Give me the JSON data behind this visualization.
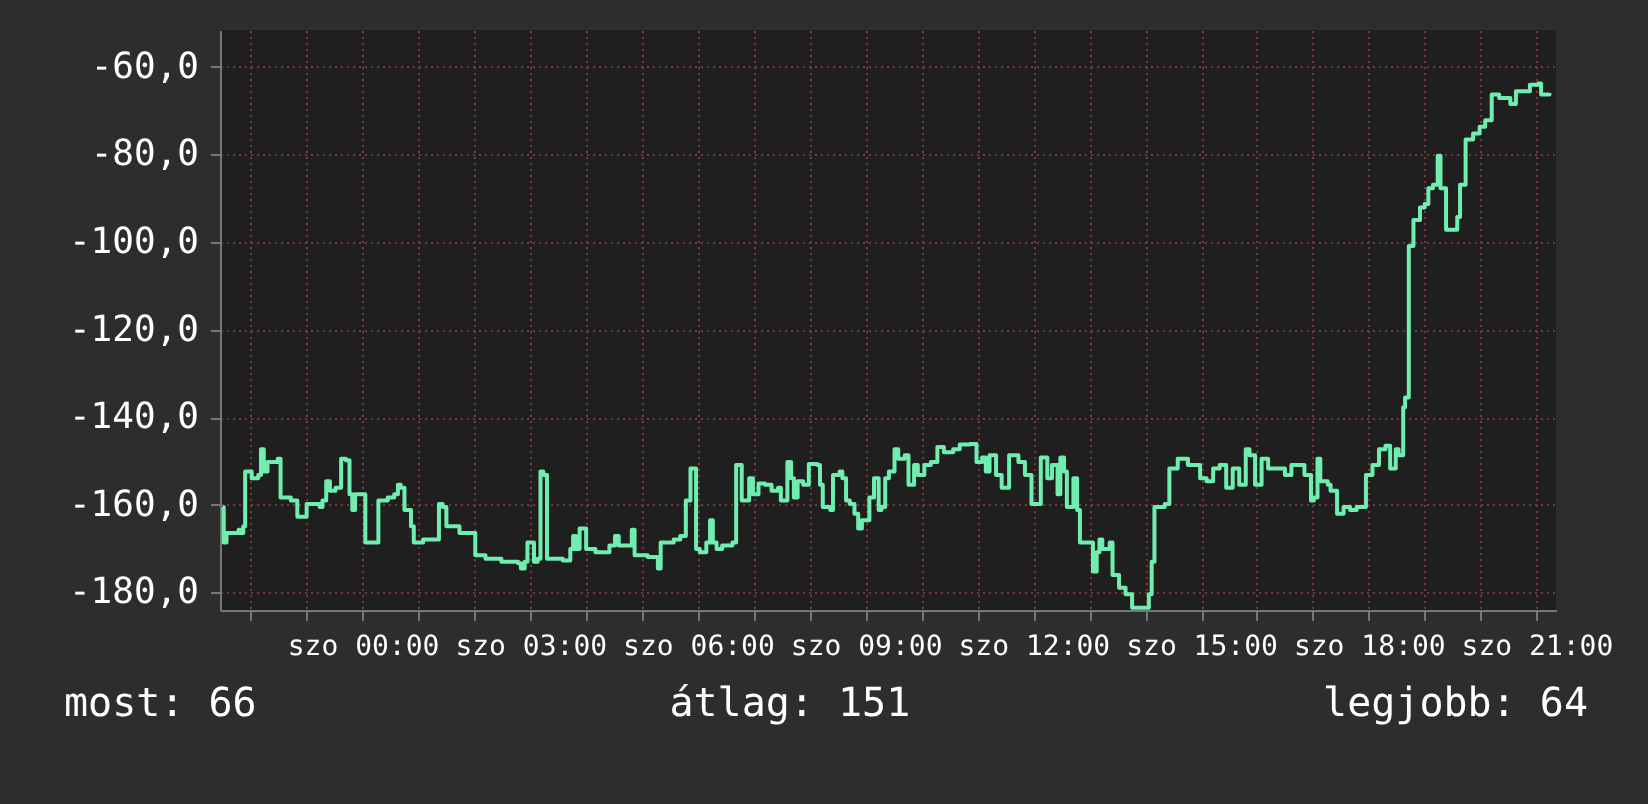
{
  "chart_data": {
    "type": "line",
    "x": [
      "--01-05T21:30",
      "--01-05T21:31",
      "--01-05T21:34",
      "--01-05T21:47",
      "--01-05T21:50",
      "--01-05T21:52",
      "--01-05T21:54",
      "--01-05T22:01",
      "--01-05T22:08",
      "--01-05T22:11",
      "--01-05T22:14",
      "--01-05T22:18",
      "--01-05T22:25",
      "--01-05T22:29",
      "--01-05T22:32",
      "--01-05T22:43",
      "--01-05T22:50",
      "--01-05T23:00",
      "--01-05T23:10",
      "--01-05T23:14",
      "--01-05T23:17",
      "--01-05T23:21",
      "--01-05T23:25",
      "--01-05T23:31",
      "--01-05T23:37",
      "--01-05T23:42",
      "--01-05T23:46",
      "--01-05T23:49",
      "--01-05T23:52",
      "--01-05T23:59",
      "--01-06T00:03",
      "--01-06T00:12",
      "--01-06T00:17",
      "--01-06T00:27",
      "--01-06T00:34",
      "--01-06T00:38",
      "--01-06T00:41",
      "--01-06T00:45",
      "--01-06T00:52",
      "--01-06T00:55",
      "--01-06T01:05",
      "--01-06T01:16",
      "--01-06T01:22",
      "--01-06T01:26",
      "--01-06T01:30",
      "--01-06T01:37",
      "--01-06T01:44",
      "--01-06T01:58",
      "--01-06T02:01",
      "--01-06T02:12",
      "--01-06T02:29",
      "--01-06T02:47",
      "--01-06T02:50",
      "--01-06T02:54",
      "--01-06T02:57",
      "--01-06T03:01",
      "--01-06T03:04",
      "--01-06T03:08",
      "--01-06T03:11",
      "--01-06T03:14",
      "--01-06T03:18",
      "--01-06T03:35",
      "--01-06T03:43",
      "--01-06T03:46",
      "--01-06T03:49",
      "--01-06T03:53",
      "--01-06T03:56",
      "--01-06T04:00",
      "--01-06T04:10",
      "--01-06T04:25",
      "--01-06T04:31",
      "--01-06T04:35",
      "--01-06T04:42",
      "--01-06T04:49",
      "--01-06T04:52",
      "--01-06T05:06",
      "--01-06T05:17",
      "--01-06T05:20",
      "--01-06T05:34",
      "--01-06T05:41",
      "--01-06T05:47",
      "--01-06T05:52",
      "--01-06T05:55",
      "--01-06T05:58",
      "--01-06T06:02",
      "--01-06T06:09",
      "--01-06T06:13",
      "--01-06T06:16",
      "--01-06T06:20",
      "--01-06T06:26",
      "--01-06T06:37",
      "--01-06T06:41",
      "--01-06T06:44",
      "--01-06T06:47",
      "--01-06T06:55",
      "--01-06T06:59",
      "--01-06T07:05",
      "--01-06T07:12",
      "--01-06T07:19",
      "--01-06T07:26",
      "--01-06T07:29",
      "--01-06T07:36",
      "--01-06T07:40",
      "--01-06T07:43",
      "--01-06T07:47",
      "--01-06T07:53",
      "--01-06T07:59",
      "--01-06T08:08",
      "--01-06T08:11",
      "--01-06T08:14",
      "--01-06T08:22",
      "--01-06T08:25",
      "--01-06T08:32",
      "--01-06T08:35",
      "--01-06T08:39",
      "--01-06T08:43",
      "--01-06T08:48",
      "--01-06T08:52",
      "--01-06T08:56",
      "--01-06T09:04",
      "--01-06T09:09",
      "--01-06T09:14",
      "--01-06T09:17",
      "--01-06T09:21",
      "--01-06T09:25",
      "--01-06T09:31",
      "--01-06T09:35",
      "--01-06T09:42",
      "--01-06T09:46",
      "--01-06T09:52",
      "--01-06T09:56",
      "--01-06T10:03",
      "--01-06T10:10",
      "--01-06T10:17",
      "--01-06T10:24",
      "--01-06T10:34",
      "--01-06T10:41",
      "--01-06T10:52",
      "--01-06T10:59",
      "--01-06T11:05",
      "--01-06T11:09",
      "--01-06T11:13",
      "--01-06T11:20",
      "--01-06T11:26",
      "--01-06T11:34",
      "--01-06T11:44",
      "--01-06T11:51",
      "--01-06T11:58",
      "--01-06T12:01",
      "--01-06T12:08",
      "--01-06T12:15",
      "--01-06T12:20",
      "--01-06T12:26",
      "--01-06T12:29",
      "--01-06T12:33",
      "--01-06T12:36",
      "--01-06T12:43",
      "--01-06T12:47",
      "--01-06T12:50",
      "--01-06T12:57",
      "--01-06T13:04",
      "--01-06T13:08",
      "--01-06T13:11",
      "--01-06T13:14",
      "--01-06T13:22",
      "--01-06T13:25",
      "--01-06T13:32",
      "--01-06T13:39",
      "--01-06T13:46",
      "--01-06T14:00",
      "--01-06T14:04",
      "--01-06T14:07",
      "--01-06T14:10",
      "--01-06T14:21",
      "--01-06T14:26",
      "--01-06T14:35",
      "--01-06T14:46",
      "--01-06T14:52",
      "--01-06T14:59",
      "--01-06T15:06",
      "--01-06T15:13",
      "--01-06T15:20",
      "--01-06T15:27",
      "--01-06T15:34",
      "--01-06T15:41",
      "--01-06T15:48",
      "--01-06T15:52",
      "--01-06T15:58",
      "--01-06T16:05",
      "--01-06T16:12",
      "--01-06T16:23",
      "--01-06T16:30",
      "--01-06T16:37",
      "--01-06T16:44",
      "--01-06T16:51",
      "--01-06T16:58",
      "--01-06T17:01",
      "--01-06T17:05",
      "--01-06T17:08",
      "--01-06T17:16",
      "--01-06T17:19",
      "--01-06T17:26",
      "--01-06T17:33",
      "--01-06T17:40",
      "--01-06T17:47",
      "--01-06T17:54",
      "--01-06T17:57",
      "--01-06T18:04",
      "--01-06T18:11",
      "--01-06T18:18",
      "--01-06T18:23",
      "--01-06T18:29",
      "--01-06T18:32",
      "--01-06T18:37",
      "--01-06T18:39",
      "--01-06T18:43",
      "--01-06T18:48",
      "--01-06T18:55",
      "--01-06T19:00",
      "--01-06T19:04",
      "--01-06T19:09",
      "--01-06T19:14",
      "--01-06T19:17",
      "--01-06T19:23",
      "--01-06T19:30",
      "--01-06T19:35",
      "--01-06T19:38",
      "--01-06T19:44",
      "--01-06T19:52",
      "--01-06T19:59",
      "--01-06T20:05",
      "--01-06T20:12",
      "--01-06T20:20",
      "--01-06T20:27",
      "--01-06T20:32",
      "--01-06T20:38",
      "--01-06T20:48",
      "--01-06T20:53",
      "--01-06T21:02",
      "--01-06T21:05",
      "--01-06T21:14"
    ],
    "series": [
      {
        "color": "#70eeb0",
        "values": [
          -160.5,
          -168.6,
          -166.4,
          -165.7,
          -166.4,
          -164.9,
          -152.4,
          -153.9,
          -153.2,
          -147.3,
          -152.4,
          -150.2,
          -150.2,
          -149.5,
          -158.3,
          -159.0,
          -162.7,
          -159.8,
          -159.8,
          -160.5,
          -159.0,
          -154.6,
          -156.8,
          -156.1,
          -149.5,
          -149.8,
          -157.6,
          -161.2,
          -157.6,
          -157.6,
          -168.6,
          -168.6,
          -159.0,
          -158.3,
          -157.6,
          -155.4,
          -156.1,
          -161.2,
          -164.9,
          -168.6,
          -167.9,
          -167.9,
          -159.8,
          -160.5,
          -164.9,
          -164.9,
          -166.4,
          -166.4,
          -171.5,
          -172.3,
          -173.0,
          -173.3,
          -174.5,
          -173.0,
          -168.6,
          -168.6,
          -173.0,
          -172.3,
          -152.4,
          -153.2,
          -172.3,
          -172.7,
          -170.1,
          -167.1,
          -170.1,
          -165.4,
          -165.4,
          -170.1,
          -170.8,
          -169.3,
          -167.1,
          -169.3,
          -169.3,
          -165.7,
          -171.5,
          -171.9,
          -174.5,
          -168.6,
          -167.9,
          -167.1,
          -159.0,
          -151.7,
          -151.7,
          -170.1,
          -170.8,
          -168.6,
          -163.5,
          -168.6,
          -170.1,
          -169.3,
          -168.6,
          -150.9,
          -150.9,
          -159.0,
          -153.9,
          -157.6,
          -155.1,
          -155.4,
          -156.8,
          -156.1,
          -159.0,
          -150.2,
          -153.9,
          -158.3,
          -154.6,
          -155.4,
          -150.7,
          -150.9,
          -155.4,
          -160.5,
          -161.2,
          -153.2,
          -152.4,
          -153.9,
          -159.0,
          -159.8,
          -162.0,
          -165.4,
          -163.5,
          -158.3,
          -153.9,
          -161.2,
          -160.5,
          -153.9,
          -152.4,
          -147.3,
          -149.5,
          -148.7,
          -155.4,
          -150.9,
          -153.2,
          -150.9,
          -150.2,
          -146.8,
          -148.0,
          -147.3,
          -146.2,
          -146.1,
          -150.2,
          -149.2,
          -152.4,
          -148.7,
          -153.2,
          -156.1,
          -148.7,
          -150.2,
          -153.2,
          -159.8,
          -159.8,
          -149.2,
          -153.9,
          -150.9,
          -157.6,
          -149.2,
          -152.4,
          -160.5,
          -153.9,
          -161.2,
          -168.6,
          -168.6,
          -175.2,
          -170.8,
          -167.9,
          -170.1,
          -168.6,
          -176.0,
          -178.9,
          -180.4,
          -183.5,
          -183.5,
          -180.4,
          -173.0,
          -160.5,
          -159.8,
          -151.7,
          -149.5,
          -150.9,
          -150.9,
          -153.9,
          -154.6,
          -151.7,
          -150.9,
          -156.1,
          -151.7,
          -155.4,
          -147.3,
          -148.7,
          -155.4,
          -149.5,
          -151.7,
          -151.7,
          -153.2,
          -150.9,
          -150.9,
          -153.2,
          -159.0,
          -158.3,
          -149.5,
          -154.6,
          -155.4,
          -156.8,
          -162.0,
          -160.5,
          -161.2,
          -160.5,
          -160.5,
          -153.2,
          -150.9,
          -147.3,
          -146.5,
          -151.7,
          -147.3,
          -148.7,
          -137.7,
          -135.5,
          -100.9,
          -95.0,
          -92.1,
          -91.3,
          -87.7,
          -86.9,
          -80.3,
          -87.7,
          -97.2,
          -97.2,
          -94.3,
          -86.9,
          -76.6,
          -75.2,
          -73.7,
          -72.2,
          -66.3,
          -67.1,
          -67.1,
          -68.5,
          -65.6,
          -65.6,
          -64.1,
          -63.8,
          -66.3,
          -66.0
        ]
      }
    ],
    "xlim": [
      "--01-05T21:27",
      "--01-06T21:21"
    ],
    "xticks": [
      {
        "value": "--01-05T22:00",
        "label": null
      },
      {
        "value": "--01-05T23:00",
        "label": null
      },
      {
        "value": "--01-06T00:00",
        "label": "szo 00:00"
      },
      {
        "value": "--01-06T01:00",
        "label": null
      },
      {
        "value": "--01-06T02:00",
        "label": null
      },
      {
        "value": "--01-06T03:00",
        "label": "szo 03:00"
      },
      {
        "value": "--01-06T04:00",
        "label": null
      },
      {
        "value": "--01-06T05:00",
        "label": null
      },
      {
        "value": "--01-06T06:00",
        "label": "szo 06:00"
      },
      {
        "value": "--01-06T07:00",
        "label": null
      },
      {
        "value": "--01-06T08:00",
        "label": null
      },
      {
        "value": "--01-06T09:00",
        "label": "szo 09:00"
      },
      {
        "value": "--01-06T10:00",
        "label": null
      },
      {
        "value": "--01-06T11:00",
        "label": null
      },
      {
        "value": "--01-06T12:00",
        "label": "szo 12:00"
      },
      {
        "value": "--01-06T13:00",
        "label": null
      },
      {
        "value": "--01-06T14:00",
        "label": null
      },
      {
        "value": "--01-06T15:00",
        "label": "szo 15:00"
      },
      {
        "value": "--01-06T16:00",
        "label": null
      },
      {
        "value": "--01-06T17:00",
        "label": null
      },
      {
        "value": "--01-06T18:00",
        "label": "szo 18:00"
      },
      {
        "value": "--01-06T19:00",
        "label": null
      },
      {
        "value": "--01-06T20:00",
        "label": null
      },
      {
        "value": "--01-06T21:00",
        "label": "szo 21:00"
      }
    ],
    "ylim": [
      -184,
      -51.6
    ],
    "yticks": [
      {
        "value": -60,
        "label": "-60,0"
      },
      {
        "value": -80,
        "label": "-80,0"
      },
      {
        "value": -100,
        "label": "-100,0"
      },
      {
        "value": -120,
        "label": "-120,0"
      },
      {
        "value": -140,
        "label": "-140,0"
      },
      {
        "value": -160,
        "label": "-160,0"
      },
      {
        "value": -180,
        "label": "-180,0"
      }
    ],
    "grid": true,
    "annotations": [
      "most: 66",
      "átlag: 151",
      "legjobb: 64"
    ]
  }
}
